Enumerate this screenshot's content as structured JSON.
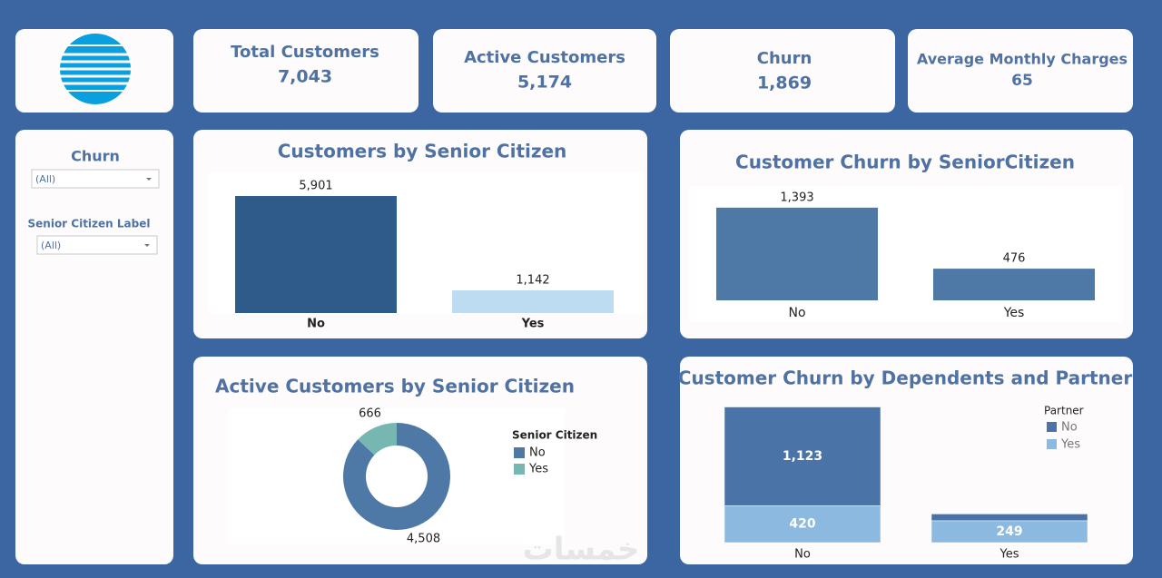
{
  "kpis": [
    {
      "title": "Total Customers",
      "value": "7,043"
    },
    {
      "title": "Active Customers",
      "value": "5,174"
    },
    {
      "title": "Churn",
      "value": "1,869"
    },
    {
      "title": "Average Monthly Charges",
      "value": "65"
    }
  ],
  "filters": [
    {
      "label": "Churn",
      "selection": "(All)"
    },
    {
      "label": "Senior Citizen Label",
      "selection": "(All)"
    }
  ],
  "watermark": "خمسات",
  "chart_data": [
    {
      "type": "bar",
      "title": "Customers by Senior Citizen",
      "categories": [
        "No",
        "Yes"
      ],
      "values": [
        5901,
        1142
      ],
      "value_labels": [
        "5,901",
        "1,142"
      ],
      "colors": [
        "#2e5b89",
        "#bddcf1"
      ],
      "ylim": [
        0,
        7000
      ]
    },
    {
      "type": "bar",
      "title": "Customer Churn by SeniorCitizen",
      "categories": [
        "No",
        "Yes"
      ],
      "values": [
        1393,
        476
      ],
      "value_labels": [
        "1,393",
        "476"
      ],
      "colors": [
        "#4e79a7",
        "#4e79a7"
      ],
      "ylim": [
        0,
        1800
      ]
    },
    {
      "type": "donut",
      "title": "Active Customers by Senior Citizen",
      "legend_title": "Senior Citizen",
      "categories": [
        "No",
        "Yes"
      ],
      "values": [
        4508,
        666
      ],
      "value_labels": [
        "4,508",
        "666"
      ],
      "colors": [
        "#4e79a7",
        "#76b7b2"
      ]
    },
    {
      "type": "stacked_bar",
      "title": "Customer Churn by Dependents and Partner",
      "legend_title": "Partner",
      "categories": [
        "No",
        "Yes"
      ],
      "ylim": [
        0,
        1600
      ],
      "series": [
        {
          "name": "No",
          "color": "#4a74a8",
          "values": [
            1123,
            77
          ],
          "value_labels": [
            "1,123",
            null
          ]
        },
        {
          "name": "Yes",
          "color": "#8cb9e0",
          "values": [
            420,
            249
          ],
          "value_labels": [
            "420",
            "249"
          ]
        }
      ]
    }
  ]
}
